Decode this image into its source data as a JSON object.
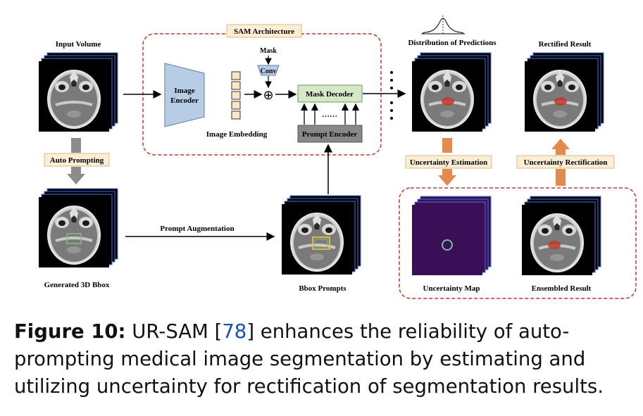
{
  "diagram": {
    "sam_architecture_title": "SAM Architecture",
    "input_volume": "Input Volume",
    "mask": "Mask",
    "conv": "Conv",
    "image_encoder_line1": "Image",
    "image_encoder_line2": "Encoder",
    "image_embedding": "Image Embedding",
    "mask_decoder": "Mask Decoder",
    "prompt_encoder": "Prompt Encoder",
    "prompt_ellipsis": "……",
    "distribution_of_predictions": "Distribution of Predictions",
    "rectified_result": "Rectified Result",
    "auto_prompting": "Auto Prompting",
    "generated_3d_bbox": "Generated 3D Bbox",
    "prompt_augmentation": "Prompt Augmentation",
    "bbox_prompts": "Bbox Prompts",
    "uncertainty_estimation": "Uncertainty Estimation",
    "uncertainty_rectification": "Uncertainty Rectification",
    "uncertainty_map": "Uncertainty Map",
    "ensembled_result": "Ensembled Result",
    "add_symbol": "⊕"
  },
  "caption": {
    "label": "Figure 10:",
    "text_before_ref": "UR-SAM [",
    "ref": "78",
    "text_after_ref": "] enhances the reliability of auto-prompting medical image segmentation by estimating and utilizing uncertainty for rectification of segmentation results."
  },
  "colors": {
    "dashed_border": "#c0392b",
    "tag_fill": "#fbeed5",
    "tag_border": "#d9b98a",
    "encoder_fill": "#b7cde6",
    "embedding_fill": "#fde6c4",
    "mask_decoder_fill": "#d7e8c8",
    "prompt_encoder_fill": "#888888",
    "orange_arrow": "#e58a4e",
    "gray_arrow": "#8c8c8c",
    "bbox_green": "#7fc27f",
    "bbox_yellow": "#e8c23a",
    "segmentation_red": "#c0392b",
    "uncertainty_bg": "#3b0f57"
  }
}
